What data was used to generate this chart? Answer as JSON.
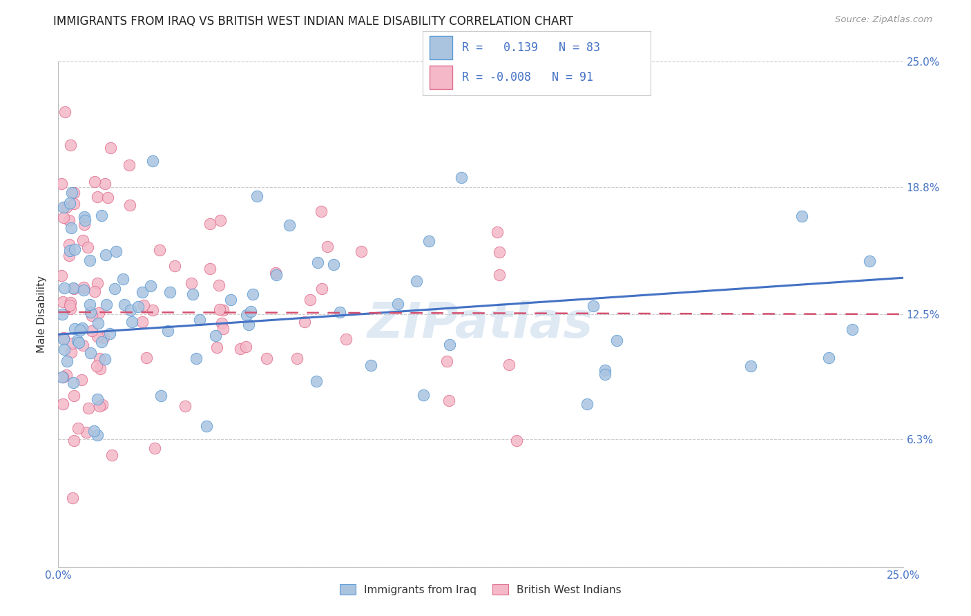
{
  "title": "IMMIGRANTS FROM IRAQ VS BRITISH WEST INDIAN MALE DISABILITY CORRELATION CHART",
  "source": "Source: ZipAtlas.com",
  "ylabel": "Male Disability",
  "xlim": [
    0.0,
    0.25
  ],
  "ylim": [
    0.0,
    0.25
  ],
  "ytick_positions": [
    0.0,
    0.063,
    0.125,
    0.188,
    0.25
  ],
  "ytick_labels": [
    "",
    "6.3%",
    "12.5%",
    "18.8%",
    "25.0%"
  ],
  "xtick_positions": [
    0.0,
    0.05,
    0.1,
    0.15,
    0.2,
    0.25
  ],
  "xtick_labels": [
    "0.0%",
    "",
    "",
    "",
    "",
    "25.0%"
  ],
  "series1_label": "Immigrants from Iraq",
  "series1_R": "0.139",
  "series1_N": "83",
  "series1_color": "#aac4e0",
  "series1_edge_color": "#5b9bd5",
  "series1_line_color": "#4472c4",
  "series2_label": "British West Indians",
  "series2_R": "-0.008",
  "series2_N": "91",
  "series2_color": "#f4b8c8",
  "series2_edge_color": "#e07090",
  "series2_line_color": "#d45070",
  "watermark": "ZIPatlas",
  "title_fontsize": 12,
  "axis_color": "#4472c4",
  "legend_text_color": "#4472c4",
  "background_color": "#ffffff",
  "grid_color": "#cccccc",
  "trend1_y_start": 0.115,
  "trend1_y_end": 0.143,
  "trend2_y_start": 0.126,
  "trend2_y_end": 0.125
}
